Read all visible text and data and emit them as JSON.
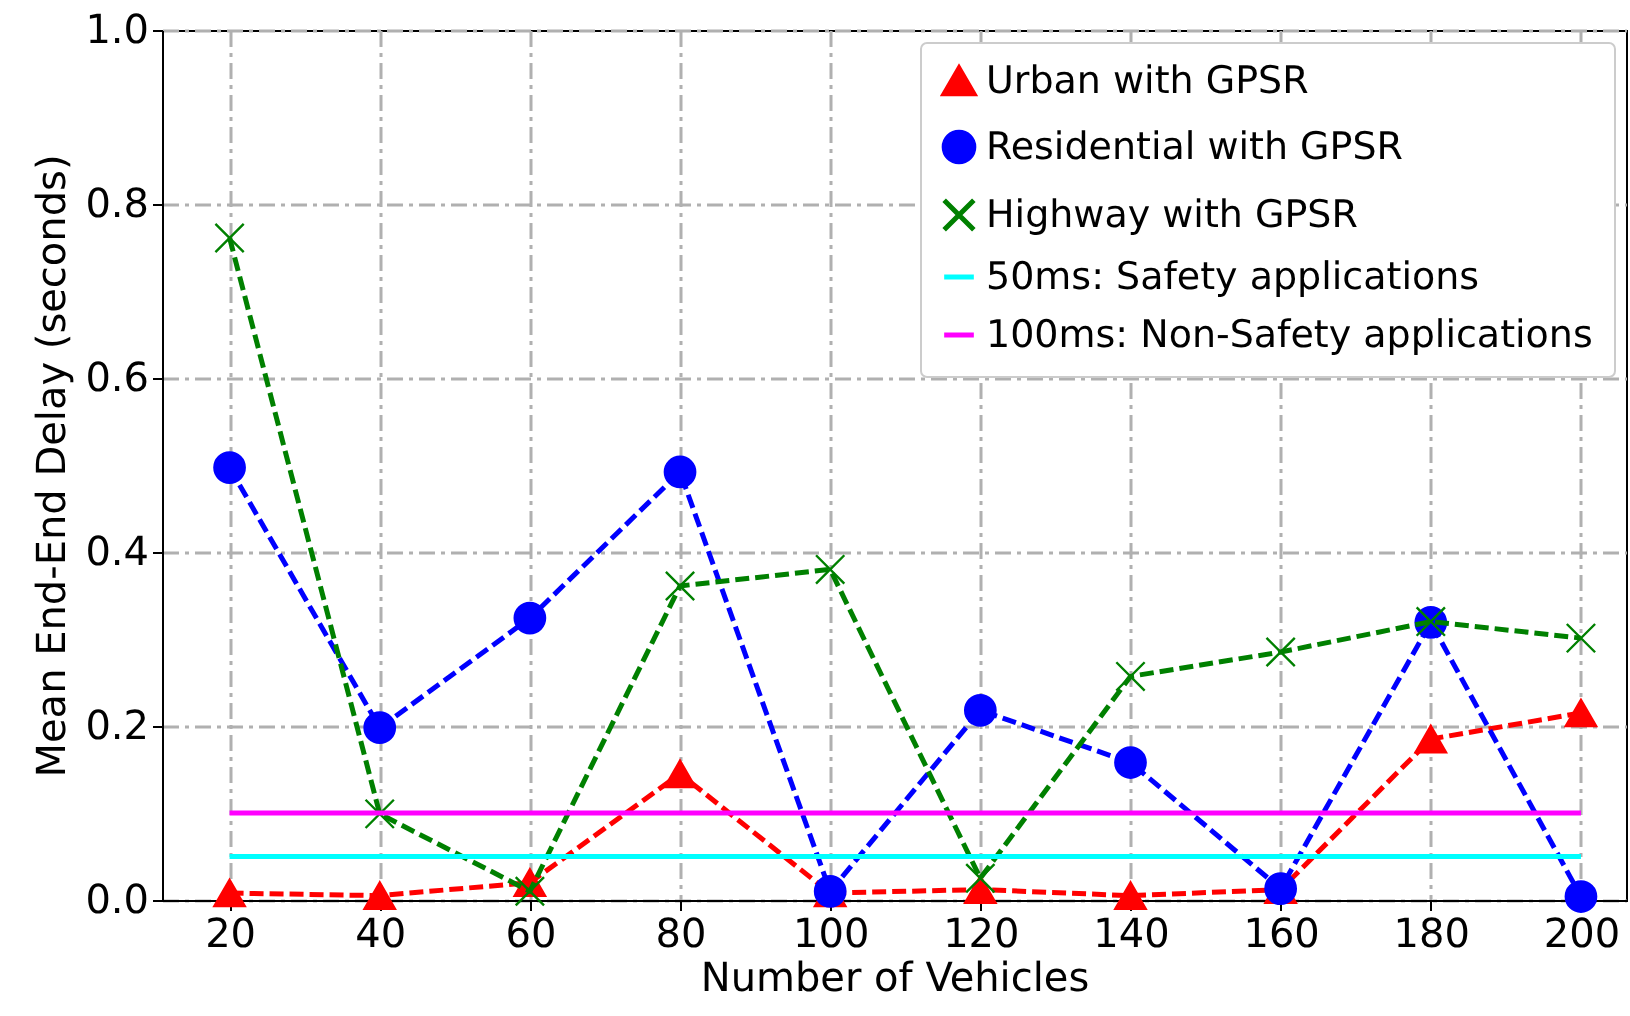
{
  "chart_data": {
    "type": "line",
    "xlabel": "Number of Vehicles",
    "ylabel": "Mean End-End Delay (seconds)",
    "x": [
      20,
      40,
      60,
      80,
      100,
      120,
      140,
      160,
      180,
      200
    ],
    "series": [
      {
        "name": "Urban with GPSR",
        "color": "#ff0000",
        "marker": "triangle",
        "line_style": "dashed",
        "values": [
          0.008,
          0.005,
          0.02,
          0.145,
          0.008,
          0.012,
          0.005,
          0.012,
          0.185,
          0.215
        ]
      },
      {
        "name": "Residential with GPSR",
        "color": "#0000ff",
        "marker": "circle",
        "line_style": "dashed",
        "values": [
          0.497,
          0.198,
          0.324,
          0.492,
          0.01,
          0.218,
          0.158,
          0.013,
          0.319,
          0.004
        ]
      },
      {
        "name": "Highway with GPSR",
        "color": "#008000",
        "marker": "cross",
        "line_style": "dashed",
        "values": [
          0.761,
          0.099,
          0.01,
          0.361,
          0.38,
          0.025,
          0.257,
          0.285,
          0.32,
          0.301
        ]
      }
    ],
    "ref_lines": [
      {
        "axis": "y",
        "value": 0.05,
        "label": "50ms: Safety applications",
        "color": "#00ffff",
        "line_style": "solid"
      },
      {
        "axis": "y",
        "value": 0.1,
        "label": "100ms: Non-Safety applications",
        "color": "#ff00ff",
        "line_style": "solid"
      }
    ],
    "xlim": [
      11,
      206
    ],
    "xticks": [
      20,
      40,
      60,
      80,
      100,
      120,
      140,
      160,
      180,
      200
    ],
    "ylim": [
      0,
      1
    ],
    "yticks": [
      {
        "value": 0,
        "label": "0.0"
      },
      {
        "value": 0.2,
        "label": "0.2"
      },
      {
        "value": 0.4,
        "label": "0.4"
      },
      {
        "value": 0.6,
        "label": "0.6"
      },
      {
        "value": 0.8,
        "label": "0.8"
      },
      {
        "value": 1,
        "label": "1.0"
      }
    ],
    "grid": true,
    "legend": "top right"
  }
}
